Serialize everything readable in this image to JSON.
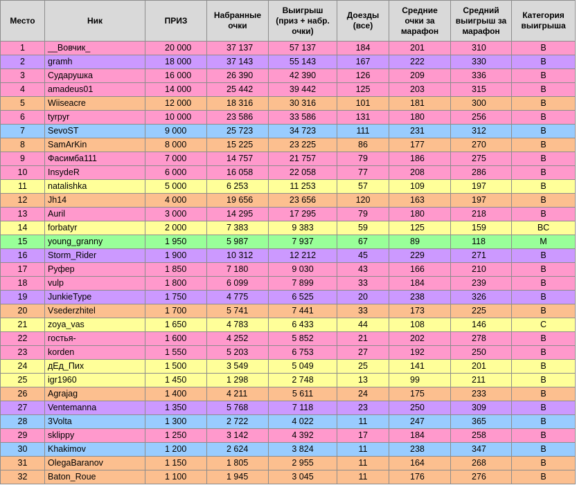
{
  "headers": {
    "place": "Место",
    "nick": "Ник",
    "prize": "ПРИЗ",
    "points_line1": "Набранные",
    "points_line2": "очки",
    "win_line1": "Выигрыш",
    "win_line2": "(приз + набр.",
    "win_line3": "очки)",
    "finishes_line1": "Доезды",
    "finishes_line2": "(все)",
    "avgpts_line1": "Средние",
    "avgpts_line2": "очки за",
    "avgpts_line3": "марафон",
    "avgwin_line1": "Средний",
    "avgwin_line2": "выигрыш за",
    "avgwin_line3": "марафон",
    "cat_line1": "Категория",
    "cat_line2": "выигрыша"
  },
  "colors": {
    "pink": "#ff99cc",
    "purple": "#cc99ff",
    "orange": "#fcbf8f",
    "blue": "#99ccff",
    "yellow": "#ffff99",
    "green": "#99ff99",
    "header": "#d9d9d9"
  },
  "rows": [
    {
      "place": "1",
      "nick": "__Вовчик_",
      "prize": "20 000",
      "points": "37 137",
      "win": "57 137",
      "finishes": "184",
      "avg_points": "201",
      "avg_win": "310",
      "category": "B",
      "color": "pink"
    },
    {
      "place": "2",
      "nick": "gramh",
      "prize": "18 000",
      "points": "37 143",
      "win": "55 143",
      "finishes": "167",
      "avg_points": "222",
      "avg_win": "330",
      "category": "B",
      "color": "purple"
    },
    {
      "place": "3",
      "nick": "Сударушка",
      "prize": "16 000",
      "points": "26 390",
      "win": "42 390",
      "finishes": "126",
      "avg_points": "209",
      "avg_win": "336",
      "category": "B",
      "color": "pink"
    },
    {
      "place": "4",
      "nick": "amadeus01",
      "prize": "14 000",
      "points": "25 442",
      "win": "39 442",
      "finishes": "125",
      "avg_points": "203",
      "avg_win": "315",
      "category": "B",
      "color": "pink"
    },
    {
      "place": "5",
      "nick": "Wiiseacre",
      "prize": "12 000",
      "points": "18 316",
      "win": "30 316",
      "finishes": "101",
      "avg_points": "181",
      "avg_win": "300",
      "category": "B",
      "color": "orange"
    },
    {
      "place": "6",
      "nick": "tyrpyr",
      "prize": "10 000",
      "points": "23 586",
      "win": "33 586",
      "finishes": "131",
      "avg_points": "180",
      "avg_win": "256",
      "category": "B",
      "color": "pink"
    },
    {
      "place": "7",
      "nick": "SevoST",
      "prize": "9 000",
      "points": "25 723",
      "win": "34 723",
      "finishes": "111",
      "avg_points": "231",
      "avg_win": "312",
      "category": "B",
      "color": "blue"
    },
    {
      "place": "8",
      "nick": "SamArKin",
      "prize": "8 000",
      "points": "15 225",
      "win": "23 225",
      "finishes": "86",
      "avg_points": "177",
      "avg_win": "270",
      "category": "B",
      "color": "orange"
    },
    {
      "place": "9",
      "nick": "Фасимба111",
      "prize": "7 000",
      "points": "14 757",
      "win": "21 757",
      "finishes": "79",
      "avg_points": "186",
      "avg_win": "275",
      "category": "B",
      "color": "pink"
    },
    {
      "place": "10",
      "nick": "InsydeR",
      "prize": "6 000",
      "points": "16 058",
      "win": "22 058",
      "finishes": "77",
      "avg_points": "208",
      "avg_win": "286",
      "category": "B",
      "color": "pink"
    },
    {
      "place": "11",
      "nick": "natalishka",
      "prize": "5 000",
      "points": "6 253",
      "win": "11 253",
      "finishes": "57",
      "avg_points": "109",
      "avg_win": "197",
      "category": "B",
      "color": "yellow"
    },
    {
      "place": "12",
      "nick": "Jh14",
      "prize": "4 000",
      "points": "19 656",
      "win": "23 656",
      "finishes": "120",
      "avg_points": "163",
      "avg_win": "197",
      "category": "B",
      "color": "orange"
    },
    {
      "place": "13",
      "nick": "Auril",
      "prize": "3 000",
      "points": "14 295",
      "win": "17 295",
      "finishes": "79",
      "avg_points": "180",
      "avg_win": "218",
      "category": "B",
      "color": "pink"
    },
    {
      "place": "14",
      "nick": "forbatyr",
      "prize": "2 000",
      "points": "7 383",
      "win": "9 383",
      "finishes": "59",
      "avg_points": "125",
      "avg_win": "159",
      "category": "BC",
      "color": "yellow"
    },
    {
      "place": "15",
      "nick": "young_granny",
      "prize": "1 950",
      "points": "5 987",
      "win": "7 937",
      "finishes": "67",
      "avg_points": "89",
      "avg_win": "118",
      "category": "M",
      "color": "green"
    },
    {
      "place": "16",
      "nick": "Storm_Rider",
      "prize": "1 900",
      "points": "10 312",
      "win": "12 212",
      "finishes": "45",
      "avg_points": "229",
      "avg_win": "271",
      "category": "B",
      "color": "purple"
    },
    {
      "place": "17",
      "nick": "Руфер",
      "prize": "1 850",
      "points": "7 180",
      "win": "9 030",
      "finishes": "43",
      "avg_points": "166",
      "avg_win": "210",
      "category": "B",
      "color": "pink"
    },
    {
      "place": "18",
      "nick": "vulp",
      "prize": "1 800",
      "points": "6 099",
      "win": "7 899",
      "finishes": "33",
      "avg_points": "184",
      "avg_win": "239",
      "category": "B",
      "color": "pink"
    },
    {
      "place": "19",
      "nick": "JunkieType",
      "prize": "1 750",
      "points": "4 775",
      "win": "6 525",
      "finishes": "20",
      "avg_points": "238",
      "avg_win": "326",
      "category": "B",
      "color": "purple"
    },
    {
      "place": "20",
      "nick": "Vsederzhitel",
      "prize": "1 700",
      "points": "5 741",
      "win": "7 441",
      "finishes": "33",
      "avg_points": "173",
      "avg_win": "225",
      "category": "B",
      "color": "orange"
    },
    {
      "place": "21",
      "nick": "zoya_vas",
      "prize": "1 650",
      "points": "4 783",
      "win": "6 433",
      "finishes": "44",
      "avg_points": "108",
      "avg_win": "146",
      "category": "C",
      "color": "yellow"
    },
    {
      "place": "22",
      "nick": "гостья-",
      "prize": "1 600",
      "points": "4 252",
      "win": "5 852",
      "finishes": "21",
      "avg_points": "202",
      "avg_win": "278",
      "category": "B",
      "color": "pink"
    },
    {
      "place": "23",
      "nick": "korden",
      "prize": "1 550",
      "points": "5 203",
      "win": "6 753",
      "finishes": "27",
      "avg_points": "192",
      "avg_win": "250",
      "category": "B",
      "color": "pink"
    },
    {
      "place": "24",
      "nick": "дЕд_Пих",
      "prize": "1 500",
      "points": "3 549",
      "win": "5 049",
      "finishes": "25",
      "avg_points": "141",
      "avg_win": "201",
      "category": "B",
      "color": "yellow"
    },
    {
      "place": "25",
      "nick": "igr1960",
      "prize": "1 450",
      "points": "1 298",
      "win": "2 748",
      "finishes": "13",
      "avg_points": "99",
      "avg_win": "211",
      "category": "B",
      "color": "yellow"
    },
    {
      "place": "26",
      "nick": "Agrajag",
      "prize": "1 400",
      "points": "4 211",
      "win": "5 611",
      "finishes": "24",
      "avg_points": "175",
      "avg_win": "233",
      "category": "B",
      "color": "orange"
    },
    {
      "place": "27",
      "nick": "Ventemanna",
      "prize": "1 350",
      "points": "5 768",
      "win": "7 118",
      "finishes": "23",
      "avg_points": "250",
      "avg_win": "309",
      "category": "B",
      "color": "purple"
    },
    {
      "place": "28",
      "nick": "3Volta",
      "prize": "1 300",
      "points": "2 722",
      "win": "4 022",
      "finishes": "11",
      "avg_points": "247",
      "avg_win": "365",
      "category": "B",
      "color": "blue"
    },
    {
      "place": "29",
      "nick": "sklippy",
      "prize": "1 250",
      "points": "3 142",
      "win": "4 392",
      "finishes": "17",
      "avg_points": "184",
      "avg_win": "258",
      "category": "B",
      "color": "pink"
    },
    {
      "place": "30",
      "nick": "Khakimov",
      "prize": "1 200",
      "points": "2 624",
      "win": "3 824",
      "finishes": "11",
      "avg_points": "238",
      "avg_win": "347",
      "category": "B",
      "color": "blue"
    },
    {
      "place": "31",
      "nick": "OlegaBaranov",
      "prize": "1 150",
      "points": "1 805",
      "win": "2 955",
      "finishes": "11",
      "avg_points": "164",
      "avg_win": "268",
      "category": "B",
      "color": "orange"
    },
    {
      "place": "32",
      "nick": "Baton_Roue",
      "prize": "1 100",
      "points": "1 945",
      "win": "3 045",
      "finishes": "11",
      "avg_points": "176",
      "avg_win": "276",
      "category": "B",
      "color": "orange"
    }
  ]
}
